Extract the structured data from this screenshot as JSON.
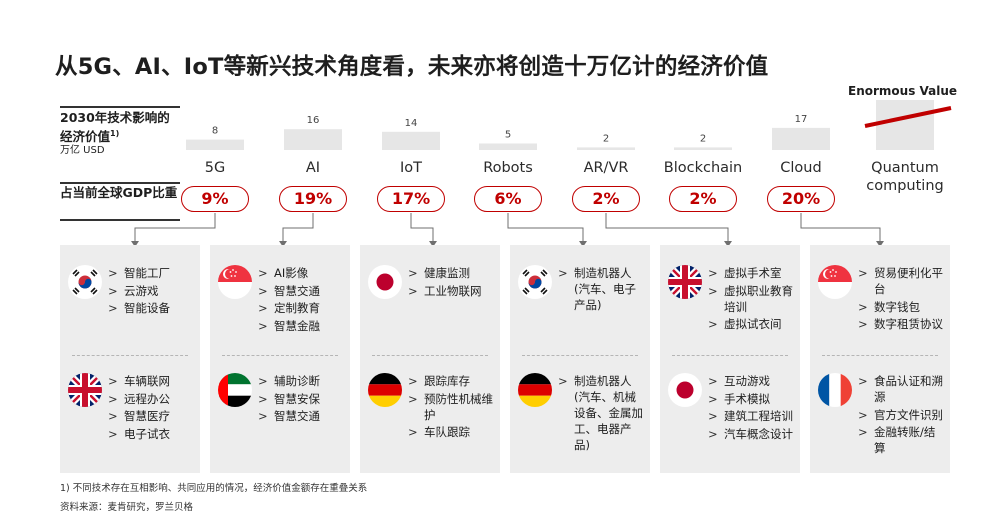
{
  "title": "从5G、AI、IoT等新兴技术角度看，未来亦将创造十万亿计的经济价值",
  "row1_label": "2030年技术影响的经济价值",
  "row1_sup": "1)",
  "row1_unit": "万亿 USD",
  "row2_label": "占当前全球GDP比重",
  "enormous_label": "Enormous Value",
  "chart_data": {
    "type": "bar",
    "categories": [
      "5G",
      "AI",
      "IoT",
      "Robots",
      "AR/VR",
      "Blockchain",
      "Cloud",
      "Quantum computing"
    ],
    "values": [
      8,
      16,
      14,
      5,
      2,
      2,
      17,
      null
    ],
    "value_labels": [
      "8",
      "16",
      "14",
      "5",
      "2",
      "2",
      "17",
      ""
    ],
    "gdp_share": [
      "9%",
      "19%",
      "17%",
      "6%",
      "2%",
      "2%",
      "20%",
      ""
    ],
    "quantum_annotation": "Enormous Value",
    "ylabel": "万亿 USD",
    "grid": false
  },
  "colors": {
    "bar": "#e6e6e6",
    "accent": "#c00000",
    "box": "#ededed",
    "connector": "#6f6f6f"
  },
  "boxes": [
    {
      "groups": [
        {
          "flag": "south-korea",
          "items": [
            "智能工厂",
            "云游戏",
            "智能设备"
          ]
        },
        {
          "flag": "united-kingdom",
          "items": [
            "车辆联网",
            "远程办公",
            "智慧医疗",
            "电子试衣"
          ]
        }
      ]
    },
    {
      "groups": [
        {
          "flag": "singapore",
          "items": [
            "AI影像",
            "智慧交通",
            "定制教育",
            "智慧金融"
          ]
        },
        {
          "flag": "uae",
          "items": [
            "辅助诊断",
            "智慧安保",
            "智慧交通"
          ]
        }
      ]
    },
    {
      "groups": [
        {
          "flag": "japan",
          "items": [
            "健康监测",
            "工业物联网"
          ]
        },
        {
          "flag": "germany",
          "items": [
            "跟踪库存",
            "预防性机械维护",
            "车队跟踪"
          ]
        }
      ]
    },
    {
      "groups": [
        {
          "flag": "south-korea",
          "items": [
            "制造机器人(汽车、电子产品)"
          ]
        },
        {
          "flag": "germany",
          "items": [
            "制造机器人(汽车、机械设备、金属加工、电器产品)"
          ]
        }
      ]
    },
    {
      "groups": [
        {
          "flag": "united-kingdom",
          "items": [
            "虚拟手术室",
            "虚拟职业教育培训",
            "虚拟试衣间"
          ]
        },
        {
          "flag": "japan",
          "items": [
            "互动游戏",
            "手术模拟",
            "建筑工程培训",
            "汽车概念设计"
          ]
        }
      ]
    },
    {
      "groups": [
        {
          "flag": "singapore",
          "items": [
            "贸易便利化平台",
            "数字钱包",
            "数字租赁协议"
          ]
        },
        {
          "flag": "france",
          "items": [
            "食品认证和溯源",
            "官方文件识别",
            "金融转账/结算"
          ]
        }
      ]
    }
  ],
  "footnote": "1) 不同技术存在互相影响、共同应用的情况，经济价值金额存在重叠关系",
  "source": "资料来源：麦肯研究，罗兰贝格"
}
